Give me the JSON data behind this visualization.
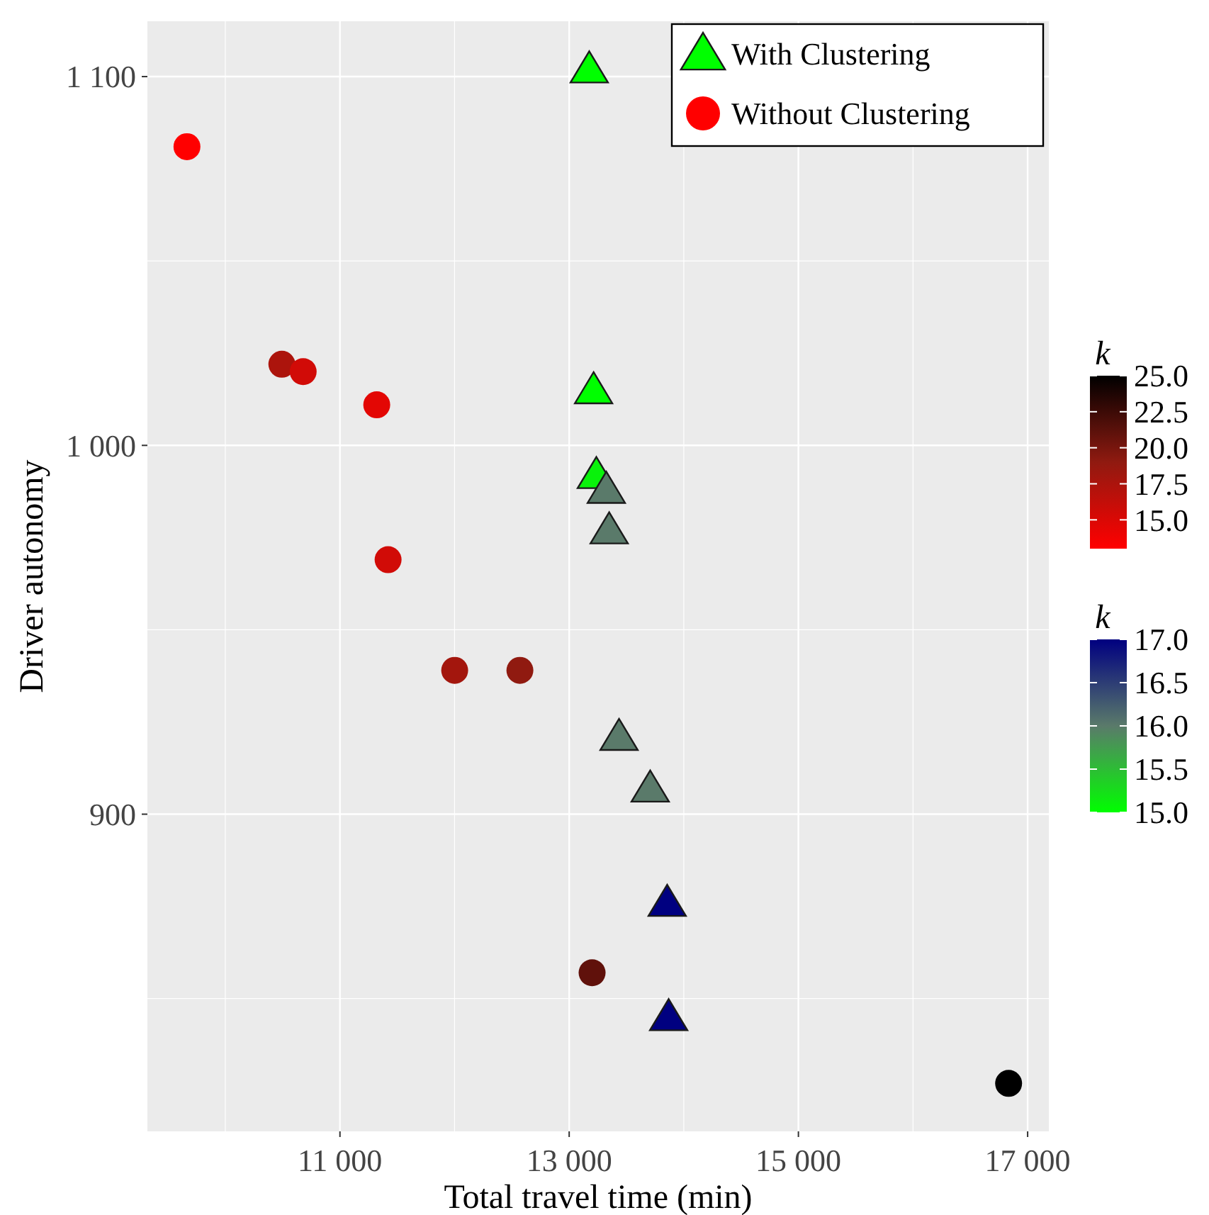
{
  "chart_data": [
    {
      "type": "scatter",
      "xlabel": "Total travel time (min)",
      "ylabel": "Driver autonomy",
      "clabel": "k",
      "xlim": [
        9320,
        17185
      ],
      "ylim": [
        814,
        1115
      ],
      "xticks": [
        {
          "value": 11000,
          "label": "11 000"
        },
        {
          "value": 13000,
          "label": "13 000"
        },
        {
          "value": 15000,
          "label": "15 000"
        },
        {
          "value": 17000,
          "label": "17 000"
        }
      ],
      "yticks": [
        {
          "value": 900,
          "label": "900"
        },
        {
          "value": 1000,
          "label": "1 000"
        },
        {
          "value": 1100,
          "label": "1 100"
        }
      ],
      "grid": true,
      "legend": "top right",
      "marker": "triangle",
      "clim": [
        15,
        17
      ],
      "cticks": [
        {
          "value": 15,
          "label": "15.0"
        },
        {
          "value": 15.5,
          "label": "15.5"
        },
        {
          "value": 16,
          "label": "16.0"
        },
        {
          "value": 16.5,
          "label": "16.5"
        },
        {
          "value": 17,
          "label": "17.0"
        }
      ],
      "series": [
        {
          "name": "With Clustering",
          "x": [
            13175,
            13213,
            13237,
            13324,
            13349,
            13435,
            13707,
            13855,
            13868
          ],
          "values": [
            1102,
            1015,
            992,
            988,
            977,
            921,
            907,
            876,
            845
          ],
          "cvalues": [
            15,
            15,
            15.1,
            16,
            16,
            16,
            16,
            17,
            17
          ]
        }
      ]
    },
    {
      "type": "scatter",
      "clabel": "k",
      "xlim": [
        9320,
        17185
      ],
      "ylim": [
        814,
        1115
      ],
      "legend": "top right",
      "marker": "circle",
      "clim": [
        13,
        25
      ],
      "cticks": [
        {
          "value": 15,
          "label": "15.0"
        },
        {
          "value": 17.5,
          "label": "17.5"
        },
        {
          "value": 20,
          "label": "20.0"
        },
        {
          "value": 22.5,
          "label": "22.5"
        },
        {
          "value": 25,
          "label": "25.0"
        }
      ],
      "series": [
        {
          "name": "Without Clustering",
          "x": [
            9665,
            10493,
            10679,
            11321,
            11420,
            12001,
            12570,
            13200,
            16834
          ],
          "values": [
            1081,
            1022,
            1020,
            1011,
            969,
            939,
            939,
            857,
            827
          ],
          "cvalues": [
            13,
            17.5,
            15.5,
            14.5,
            15.5,
            18,
            19,
            21,
            25
          ]
        }
      ]
    }
  ]
}
